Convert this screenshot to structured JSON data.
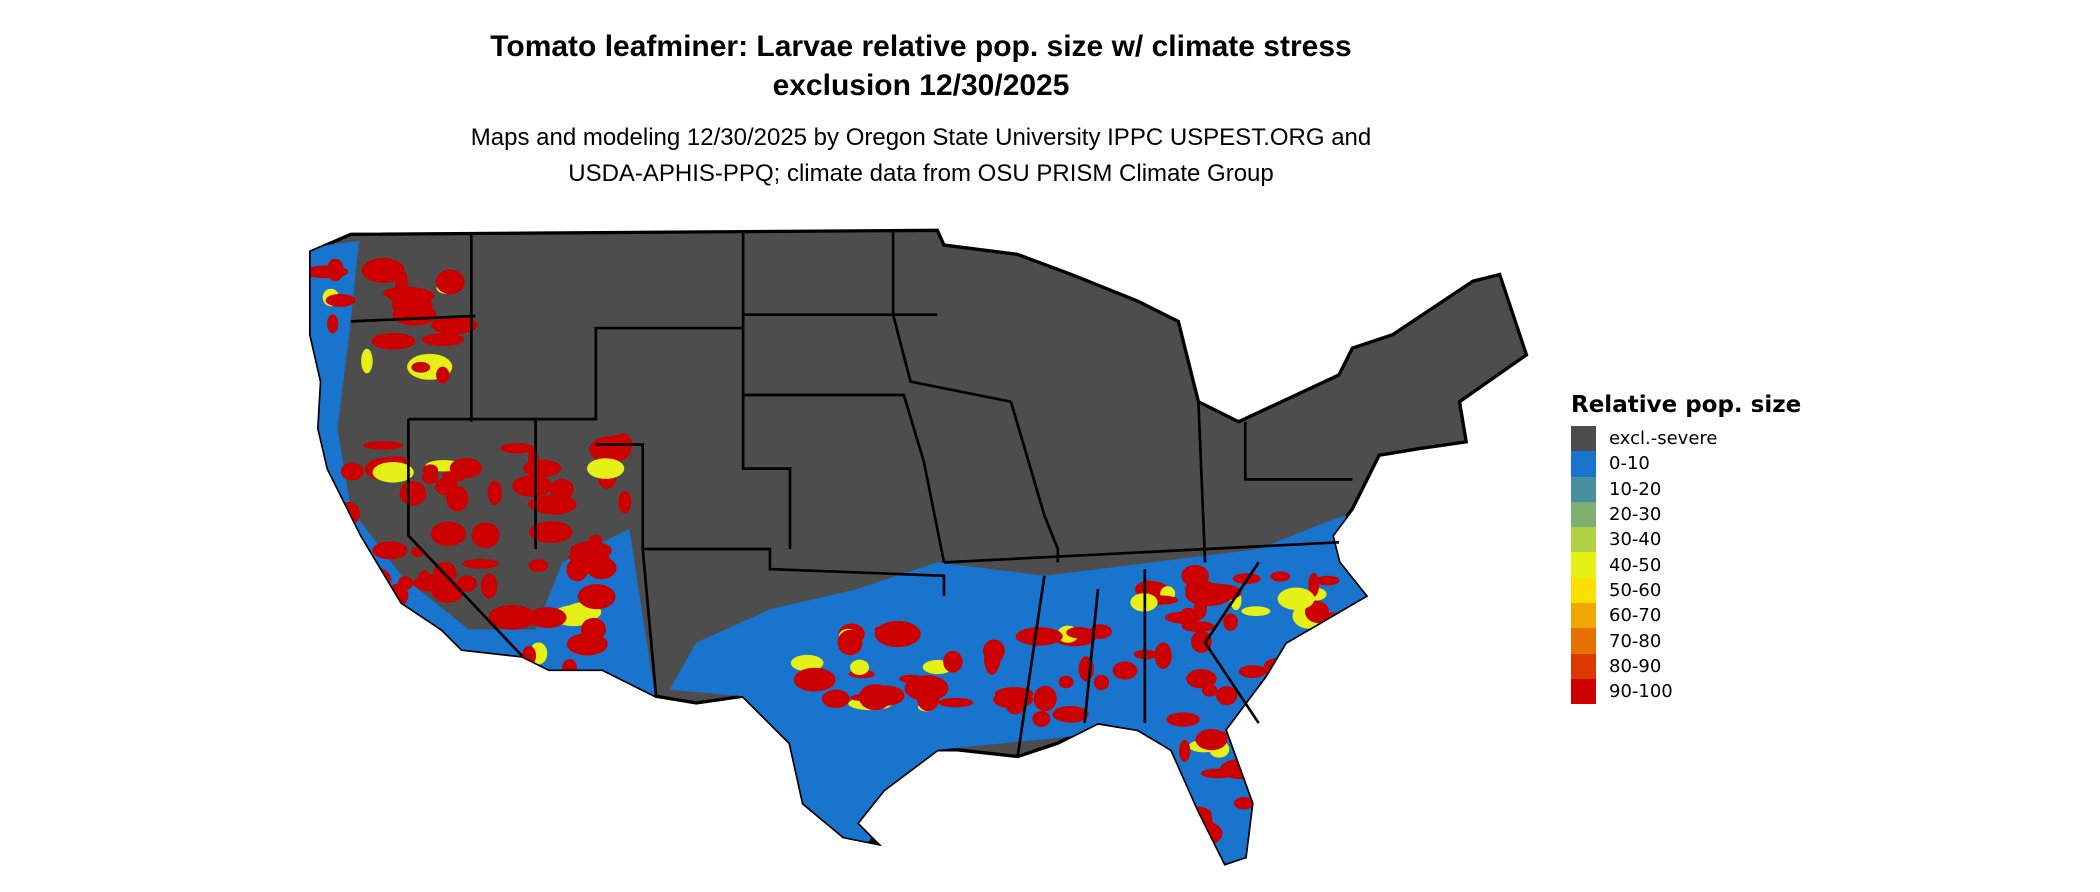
{
  "title_line1": "Tomato leafminer: Larvae relative pop. size w/ climate stress",
  "title_line2": "exclusion 12/30/2025",
  "subtitle_line1": "Maps and modeling 12/30/2025 by Oregon State University IPPC USPEST.ORG and",
  "subtitle_line2": "USDA-APHIS-PPQ; climate data from OSU PRISM Climate Group",
  "map": {
    "region": "Contiguous United States",
    "borders": "state boundaries"
  },
  "legend": {
    "title": "Relative pop. size",
    "items": [
      {
        "label": "excl.-severe",
        "color": "#4d4d4d"
      },
      {
        "label": "0-10",
        "color": "#1874cd"
      },
      {
        "label": "10-20",
        "color": "#48919c"
      },
      {
        "label": "20-30",
        "color": "#7eaf72"
      },
      {
        "label": "30-40",
        "color": "#b2d045"
      },
      {
        "label": "40-50",
        "color": "#e5f016"
      },
      {
        "label": "50-60",
        "color": "#fae100"
      },
      {
        "label": "60-70",
        "color": "#f0a800"
      },
      {
        "label": "70-80",
        "color": "#e57200"
      },
      {
        "label": "80-90",
        "color": "#dc3800"
      },
      {
        "label": "90-100",
        "color": "#cd0000"
      }
    ]
  }
}
